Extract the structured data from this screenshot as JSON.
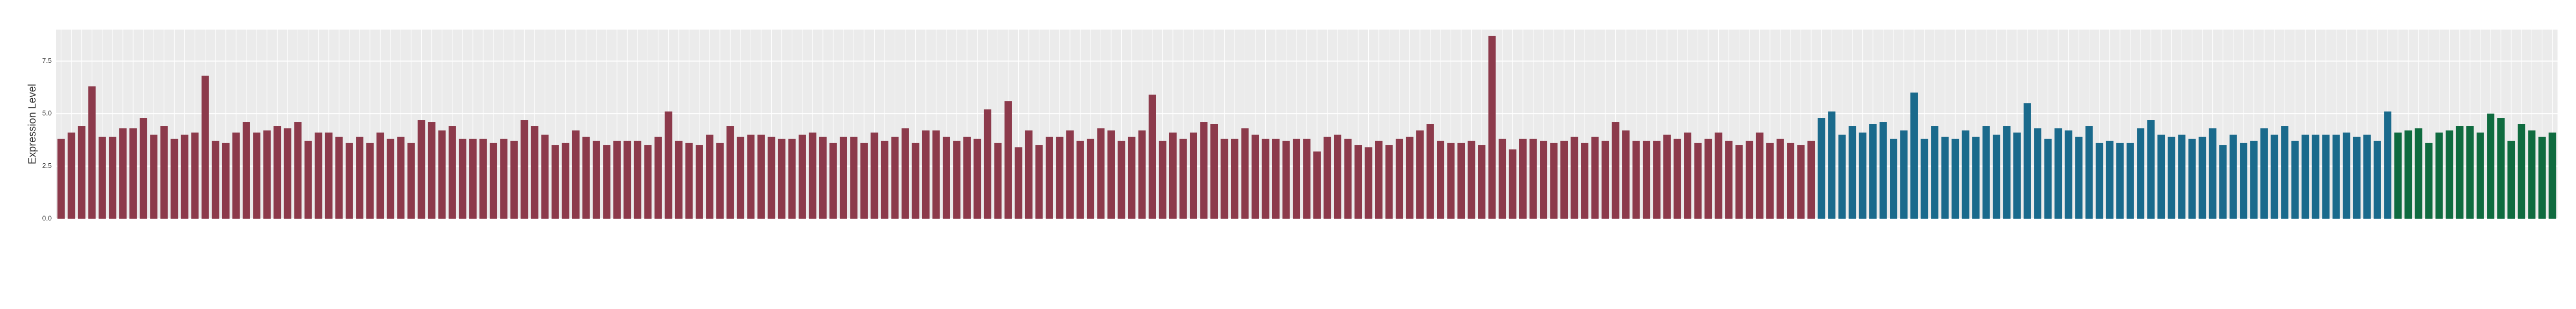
{
  "chart_data": {
    "type": "bar",
    "y_label": "Expression Level",
    "ylim": [
      0,
      9
    ],
    "yticks": [
      {
        "value": 0,
        "label": "0.0"
      },
      2.5,
      {
        "value": 5,
        "label": "5.0"
      },
      7.5
    ],
    "grid": true,
    "series": [
      {
        "color": "#8c3a4b",
        "values": [
          3.8,
          4.1,
          4.4,
          6.3,
          3.9,
          3.9,
          4.3,
          4.3,
          4.8,
          4.0,
          4.4,
          3.8,
          4.0,
          4.1,
          6.8,
          3.7,
          3.6,
          4.1,
          4.6,
          4.1,
          4.2,
          4.4,
          4.3,
          4.6,
          3.7,
          4.1,
          4.1,
          3.9,
          3.6,
          3.9,
          3.6,
          4.1,
          3.8,
          3.9,
          3.6,
          4.7,
          4.6,
          4.2,
          4.4,
          3.8,
          3.8,
          3.8,
          3.6,
          3.8,
          3.7,
          4.7,
          4.4,
          4.0,
          3.5,
          3.6,
          4.2,
          3.9,
          3.7,
          3.5,
          3.7,
          3.7,
          3.7,
          3.5,
          3.9,
          5.1,
          3.7,
          3.6,
          3.5,
          4.0,
          3.6,
          4.4,
          3.9,
          4.0,
          4.0,
          3.9,
          3.8,
          3.8,
          4.0,
          4.1,
          3.9,
          3.6,
          3.9,
          3.9,
          3.6,
          4.1,
          3.7,
          3.9,
          4.3,
          3.6,
          4.2,
          4.2,
          3.9,
          3.7,
          3.9,
          3.8,
          5.2,
          3.6,
          5.6,
          3.4,
          4.2,
          3.5,
          3.9,
          3.9,
          4.2,
          3.7,
          3.8,
          4.3,
          4.2,
          3.7,
          3.9,
          4.2,
          5.9,
          3.7,
          4.1,
          3.8,
          4.1,
          4.6,
          4.5,
          3.8,
          3.8,
          4.3,
          4.0,
          3.8,
          3.8,
          3.7,
          3.8,
          3.8,
          3.2,
          3.9,
          4.0,
          3.8,
          3.5,
          3.4,
          3.7,
          3.5,
          3.8,
          3.9,
          4.2,
          4.5,
          3.7,
          3.6,
          3.6,
          3.7,
          3.5,
          8.7,
          3.8,
          3.3,
          3.8,
          3.8,
          3.7,
          3.6,
          3.7,
          3.9,
          3.6,
          3.9,
          3.7,
          4.6,
          4.2,
          3.7,
          3.7,
          3.7,
          4.0,
          3.8,
          4.1,
          3.6,
          3.8,
          4.1,
          3.7,
          3.5,
          3.7,
          4.1,
          3.6,
          3.8,
          3.6,
          3.5,
          3.7
        ]
      },
      {
        "color": "#1a6a8c",
        "values": [
          4.8,
          5.1,
          4.0,
          4.4,
          4.1,
          4.5,
          4.6,
          3.8,
          4.2,
          6.0,
          3.8,
          4.4,
          3.9,
          3.8,
          4.2,
          3.9,
          4.4,
          4.0,
          4.4,
          4.1,
          5.5,
          4.3,
          3.8,
          4.3,
          4.2,
          3.9,
          4.4,
          3.6,
          3.7,
          3.6,
          3.6,
          4.3,
          4.7,
          4.0,
          3.9,
          4.0,
          3.8,
          3.9,
          4.3,
          3.5,
          4.0,
          3.6,
          3.7,
          4.3,
          4.0,
          4.4,
          3.7,
          4.0,
          4.0,
          4.0,
          4.0,
          4.1,
          3.9,
          4.0,
          3.7,
          5.1
        ]
      },
      {
        "color": "#0f6b3f",
        "values": [
          4.1,
          4.2,
          4.3,
          3.6,
          4.1,
          4.2,
          4.4,
          4.4,
          4.1,
          5.0,
          4.8,
          3.7,
          4.5,
          4.2,
          3.9,
          4.1
        ]
      }
    ]
  }
}
